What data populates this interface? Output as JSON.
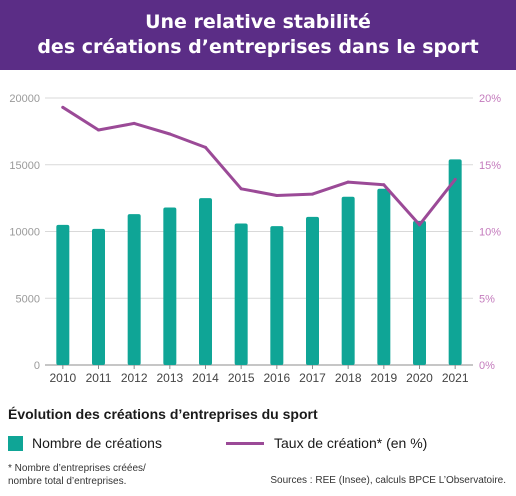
{
  "header": {
    "title_line1": "Une relative stabilité",
    "title_line2": "des créations d’entreprises dans le sport"
  },
  "subtitle": "Évolution des créations d’entreprises du sport",
  "legend": {
    "bars_label": "Nombre de créations",
    "line_label": "Taux de création* (en %)"
  },
  "footnote": {
    "line1": "* Nombre d’entreprises créées/",
    "line2": "nombre total d’entreprises."
  },
  "source": "Sources : REE (Insee), calculs BPCE L’Observatoire.",
  "colors": {
    "banner": "#5b2d86",
    "bar": "#0fa596",
    "line": "#9b4a97",
    "axis_text": "#9a9a9a",
    "right_axis_text": "#c47bbd",
    "grid": "#d9d9d9"
  },
  "chart_data": {
    "type": "bar",
    "categories": [
      "2010",
      "2011",
      "2012",
      "2013",
      "2014",
      "2015",
      "2016",
      "2017",
      "2018",
      "2019",
      "2020",
      "2021"
    ],
    "series": [
      {
        "name": "Nombre de créations",
        "type": "bar",
        "axis": "left",
        "values": [
          10500,
          10200,
          11300,
          11800,
          12500,
          10600,
          10400,
          11100,
          12600,
          13200,
          10800,
          15400
        ]
      },
      {
        "name": "Taux de création* (en %)",
        "type": "line",
        "axis": "right",
        "values": [
          19.3,
          17.6,
          18.1,
          17.3,
          16.3,
          13.2,
          12.7,
          12.8,
          13.7,
          13.5,
          10.5,
          13.9
        ]
      }
    ],
    "y_left": {
      "ylim": [
        0,
        20000
      ],
      "ticks": [
        "0",
        "5000",
        "10000",
        "15000",
        "20000"
      ]
    },
    "y_right": {
      "ylim": [
        0,
        20
      ],
      "ticks": [
        "0%",
        "5%",
        "10%",
        "15%",
        "20%"
      ]
    },
    "grid": true
  }
}
